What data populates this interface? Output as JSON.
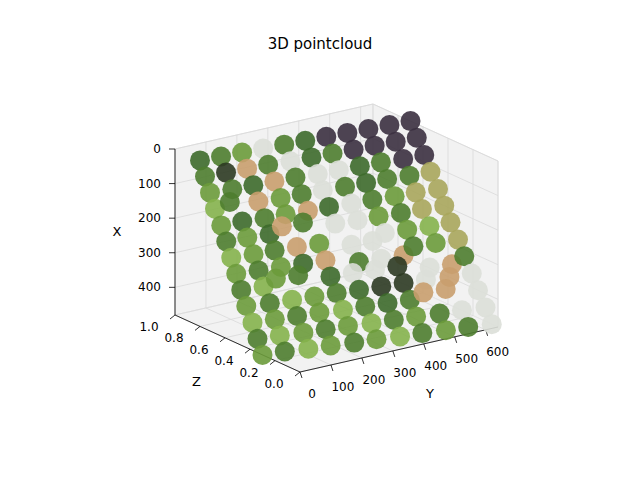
{
  "chart_data": {
    "type": "scatter3d",
    "title": "3D pointcloud",
    "x_label": "X",
    "y_label": "Y",
    "z_label": "Z",
    "xlim": [
      0,
      480
    ],
    "ylim": [
      0,
      640
    ],
    "zlim": [
      0,
      1
    ],
    "xticks": [
      0,
      100,
      200,
      300,
      400
    ],
    "yticks": [
      0,
      100,
      200,
      300,
      400,
      500,
      600
    ],
    "zticks": [
      {
        "value": 0,
        "label": "0.0"
      },
      {
        "value": 0.2,
        "label": "0.2"
      },
      {
        "value": 0.4,
        "label": "0.4"
      },
      {
        "value": 0.6,
        "label": "0.6"
      },
      {
        "value": 0.8,
        "label": "0.8"
      },
      {
        "value": 1,
        "label": "1.0"
      }
    ],
    "grid": true,
    "x": [
      0,
      40,
      80,
      120,
      160,
      200,
      240,
      280,
      320,
      360,
      400,
      440,
      480
    ],
    "y": [
      0,
      64,
      128,
      192,
      256,
      320,
      384,
      448,
      512,
      576,
      640
    ],
    "z": [
      [
        0.8,
        0.79,
        0.78,
        0.77,
        0.76,
        0.75,
        0.74,
        0.73,
        0.72,
        0.71,
        0.7
      ],
      [
        0.76,
        0.75,
        0.74,
        0.73,
        0.71,
        0.7,
        0.69,
        0.68,
        0.67,
        0.66,
        0.65
      ],
      [
        0.72,
        0.7,
        0.69,
        0.68,
        0.67,
        0.65,
        0.64,
        0.63,
        0.62,
        0.6,
        0.59
      ],
      [
        0.68,
        0.72,
        0.65,
        0.63,
        0.62,
        0.61,
        0.59,
        0.58,
        0.57,
        0.55,
        0.54
      ],
      [
        0.63,
        0.62,
        0.6,
        0.59,
        0.57,
        0.56,
        0.54,
        0.53,
        0.51,
        0.5,
        0.48
      ],
      [
        0.59,
        0.58,
        0.56,
        0.62,
        0.61,
        0.51,
        0.49,
        0.48,
        0.46,
        0.45,
        0.43
      ],
      [
        0.55,
        0.53,
        0.52,
        0.5,
        0.48,
        0.38,
        0.37,
        0.43,
        0.41,
        0.39,
        0.38
      ],
      [
        0.51,
        0.49,
        0.47,
        0.45,
        0.43,
        0.32,
        0.3,
        0.28,
        0.36,
        0.34,
        0.32
      ],
      [
        0.47,
        0.45,
        0.51,
        0.49,
        0.39,
        0.37,
        0.35,
        0.33,
        0.23,
        0.21,
        0.27
      ],
      [
        0.43,
        0.4,
        0.38,
        0.36,
        0.34,
        0.32,
        0.3,
        0.28,
        0.26,
        0.23,
        0.21
      ],
      [
        0.38,
        0.36,
        0.34,
        0.32,
        0.29,
        0.27,
        0.25,
        0.23,
        0.28,
        0.26,
        0.16
      ],
      [
        0.34,
        0.32,
        0.29,
        0.27,
        0.25,
        0.22,
        0.2,
        0.18,
        0.15,
        0.13,
        0.1
      ],
      [
        0.3,
        0.28,
        0.25,
        0.23,
        0.2,
        0.18,
        0.15,
        0.13,
        0.1,
        0.08,
        0.05
      ]
    ],
    "colors": [
      [
        "#3d6a2b",
        "#4e7d2f",
        "#6b9b3b",
        "#dcdfd8",
        "#4e7d2f",
        "#3d6a2b",
        "#3b3040",
        "#3b3040",
        "#3b3040",
        "#3b3040",
        "#3b3040"
      ],
      [
        "#4e7d2f",
        "#2c3a22",
        "#c99e6e",
        "#4e7d2f",
        "#dcdfd8",
        "#3d6a2b",
        "#4e7d2f",
        "#3b3040",
        "#3b3040",
        "#3b3040",
        "#3b3040"
      ],
      [
        "#6b9b3b",
        "#4e7d2f",
        "#3d6a2b",
        "#c99e6e",
        "#4e7d2f",
        "#dcdfd8",
        "#dcdfd8",
        "#3d6a2b",
        "#4e7d2f",
        "#3b3040",
        "#3b3040"
      ],
      [
        "#85b24c",
        "#4e7d2f",
        "#c99e6e",
        "#6b9b3b",
        "#4e7d2f",
        "#dcdfd8",
        "#4e7d2f",
        "#3d6a2b",
        "#4e7d2f",
        "#4e7d2f",
        "#a8a65c"
      ],
      [
        "#6b9b3b",
        "#3d6a2b",
        "#4e7d2f",
        "#6b9b3b",
        "#c99e6e",
        "#3d6a2b",
        "#dcdfd8",
        "#4e7d2f",
        "#6b9b3b",
        "#a8a65c",
        "#a8a65c"
      ],
      [
        "#4e7d2f",
        "#6b9b3b",
        "#3d6a2b",
        "#c99e6e",
        "#4e7d2f",
        "#dcdfd8",
        "#dcdfd8",
        "#6b9b3b",
        "#4e7d2f",
        "#a8a65c",
        "#a8a65c"
      ],
      [
        "#85b24c",
        "#6b9b3b",
        "#4e7d2f",
        "#c99e6e",
        "#6b9b3b",
        "#dcdfd8",
        "#dcdfd8",
        "#dcdfd8",
        "#6b9b3b",
        "#85b24c",
        "#a8a65c"
      ],
      [
        "#6b9b3b",
        "#4e7d2f",
        "#6b9b3b",
        "#3d6a2b",
        "#c99e6e",
        "#4e7d2f",
        "#dcdfd8",
        "#c99e6e",
        "#4e7d2f",
        "#6b9b3b",
        "#a8a65c"
      ],
      [
        "#4e7d2f",
        "#85b24c",
        "#6b9b3b",
        "#4e7d2f",
        "#3d6a2b",
        "#dcdfd8",
        "#dcdfd8",
        "#2c3a22",
        "#dcdfd8",
        "#c99e6e",
        "#4e7d2f"
      ],
      [
        "#6b9b3b",
        "#4e7d2f",
        "#85b24c",
        "#6b9b3b",
        "#4e7d2f",
        "#3d6a2b",
        "#2c3a22",
        "#2c3a22",
        "#dcdfd8",
        "#c99e6e",
        "#dcdfd8"
      ],
      [
        "#85b24c",
        "#6b9b3b",
        "#4e7d2f",
        "#6b9b3b",
        "#85b24c",
        "#4e7d2f",
        "#3d6a2b",
        "#4e7d2f",
        "#c99e6e",
        "#c99e6e",
        "#dcdfd8"
      ],
      [
        "#4e7d2f",
        "#85b24c",
        "#6b9b3b",
        "#4e7d2f",
        "#6b9b3b",
        "#85b24c",
        "#4e7d2f",
        "#6b9b3b",
        "#4e7d2f",
        "#dcdfd8",
        "#dcdfd8"
      ],
      [
        "#6b9b3b",
        "#4e7d2f",
        "#85b24c",
        "#6b9b3b",
        "#4e7d2f",
        "#6b9b3b",
        "#85b24c",
        "#4e7d2f",
        "#6b9b3b",
        "#4e7d2f",
        "#dcdfd8"
      ]
    ]
  }
}
